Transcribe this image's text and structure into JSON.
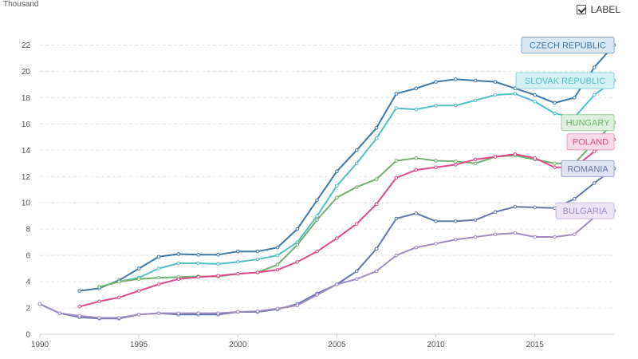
{
  "chart_data": {
    "type": "line",
    "title": "",
    "ylabel": "Thousand",
    "xlabel": "",
    "xlim": [
      1990,
      2019
    ],
    "ylim": [
      0,
      23
    ],
    "x_ticks": [
      1990,
      1995,
      2000,
      2005,
      2010,
      2015
    ],
    "y_ticks": [
      0,
      2,
      4,
      6,
      8,
      10,
      12,
      14,
      16,
      18,
      20,
      22
    ],
    "grid": true,
    "legend_placement": "right-inline",
    "series": [
      {
        "name": "CZECH REPUBLIC",
        "color": "#3c78a8",
        "label_bg": "#dbe8f3",
        "label_border": "#7fa8cc",
        "points": [
          [
            1992,
            3.3
          ],
          [
            1993,
            3.5
          ],
          [
            1994,
            4.1
          ],
          [
            1995,
            5.0
          ],
          [
            1996,
            5.9
          ],
          [
            1997,
            6.1
          ],
          [
            1998,
            6.05
          ],
          [
            1999,
            6.05
          ],
          [
            2000,
            6.3
          ],
          [
            2001,
            6.3
          ],
          [
            2002,
            6.6
          ],
          [
            2003,
            8.0
          ],
          [
            2004,
            10.2
          ],
          [
            2005,
            12.4
          ],
          [
            2006,
            14.0
          ],
          [
            2007,
            15.7
          ],
          [
            2008,
            18.3
          ],
          [
            2009,
            18.7
          ],
          [
            2010,
            19.2
          ],
          [
            2011,
            19.4
          ],
          [
            2012,
            19.3
          ],
          [
            2013,
            19.2
          ],
          [
            2014,
            18.7
          ],
          [
            2015,
            18.2
          ],
          [
            2016,
            17.6
          ],
          [
            2017,
            18.0
          ],
          [
            2018,
            20.3
          ],
          [
            2019,
            22.0
          ]
        ]
      },
      {
        "name": "SLOVAK REPUBLIC",
        "color": "#4fc0c8",
        "label_bg": "#d6f1f3",
        "label_border": "#86d3d8",
        "points": [
          [
            1993,
            3.6
          ],
          [
            1994,
            4.0
          ],
          [
            1995,
            4.3
          ],
          [
            1996,
            5.0
          ],
          [
            1997,
            5.4
          ],
          [
            1998,
            5.4
          ],
          [
            1999,
            5.35
          ],
          [
            2000,
            5.5
          ],
          [
            2001,
            5.7
          ],
          [
            2002,
            6.0
          ],
          [
            2003,
            7.0
          ],
          [
            2004,
            9.0
          ],
          [
            2005,
            11.3
          ],
          [
            2006,
            13.0
          ],
          [
            2007,
            14.9
          ],
          [
            2008,
            17.2
          ],
          [
            2009,
            17.1
          ],
          [
            2010,
            17.4
          ],
          [
            2011,
            17.4
          ],
          [
            2012,
            17.8
          ],
          [
            2013,
            18.2
          ],
          [
            2014,
            18.3
          ],
          [
            2015,
            17.7
          ],
          [
            2016,
            16.8
          ],
          [
            2017,
            16.5
          ],
          [
            2018,
            18.2
          ],
          [
            2019,
            19.3
          ]
        ]
      },
      {
        "name": "HUNGARY",
        "color": "#72b06e",
        "label_bg": "#e0f0de",
        "label_border": "#9fcf9b",
        "points": [
          [
            1993,
            3.6
          ],
          [
            1994,
            4.0
          ],
          [
            1995,
            4.2
          ],
          [
            1996,
            4.3
          ],
          [
            1997,
            4.35
          ],
          [
            1998,
            4.4
          ],
          [
            1999,
            4.4
          ],
          [
            2000,
            4.6
          ],
          [
            2001,
            4.7
          ],
          [
            2002,
            5.3
          ],
          [
            2003,
            6.8
          ],
          [
            2004,
            8.7
          ],
          [
            2005,
            10.4
          ],
          [
            2006,
            11.2
          ],
          [
            2007,
            11.8
          ],
          [
            2008,
            13.2
          ],
          [
            2009,
            13.4
          ],
          [
            2010,
            13.2
          ],
          [
            2011,
            13.15
          ],
          [
            2012,
            13.0
          ],
          [
            2013,
            13.5
          ],
          [
            2014,
            13.6
          ],
          [
            2015,
            13.3
          ],
          [
            2016,
            13.0
          ],
          [
            2017,
            13.0
          ],
          [
            2018,
            14.6
          ],
          [
            2019,
            16.1
          ]
        ]
      },
      {
        "name": "POLAND",
        "color": "#de4b8c",
        "label_bg": "#f9dbe8",
        "label_border": "#eba0c3",
        "points": [
          [
            1992,
            2.1
          ],
          [
            1993,
            2.5
          ],
          [
            1994,
            2.8
          ],
          [
            1995,
            3.3
          ],
          [
            1996,
            3.8
          ],
          [
            1997,
            4.2
          ],
          [
            1998,
            4.35
          ],
          [
            1999,
            4.45
          ],
          [
            2000,
            4.6
          ],
          [
            2001,
            4.7
          ],
          [
            2002,
            4.9
          ],
          [
            2003,
            5.5
          ],
          [
            2004,
            6.3
          ],
          [
            2005,
            7.3
          ],
          [
            2006,
            8.4
          ],
          [
            2007,
            9.9
          ],
          [
            2008,
            11.9
          ],
          [
            2009,
            12.5
          ],
          [
            2010,
            12.7
          ],
          [
            2011,
            12.9
          ],
          [
            2012,
            13.3
          ],
          [
            2013,
            13.5
          ],
          [
            2014,
            13.7
          ],
          [
            2015,
            13.4
          ],
          [
            2016,
            12.7
          ],
          [
            2017,
            12.7
          ],
          [
            2018,
            13.9
          ],
          [
            2019,
            14.8
          ]
        ]
      },
      {
        "name": "ROMANIA",
        "color": "#6475a8",
        "label_bg": "#e0e4f2",
        "label_border": "#9aa6cc",
        "points": [
          [
            1990,
            2.3
          ],
          [
            1991,
            1.6
          ],
          [
            1992,
            1.3
          ],
          [
            1993,
            1.2
          ],
          [
            1994,
            1.2
          ],
          [
            1995,
            1.5
          ],
          [
            1996,
            1.6
          ],
          [
            1997,
            1.5
          ],
          [
            1998,
            1.5
          ],
          [
            1999,
            1.5
          ],
          [
            2000,
            1.7
          ],
          [
            2001,
            1.7
          ],
          [
            2002,
            1.9
          ],
          [
            2003,
            2.3
          ],
          [
            2004,
            3.1
          ],
          [
            2005,
            3.8
          ],
          [
            2006,
            4.8
          ],
          [
            2007,
            6.5
          ],
          [
            2008,
            8.8
          ],
          [
            2009,
            9.2
          ],
          [
            2010,
            8.6
          ],
          [
            2011,
            8.6
          ],
          [
            2012,
            8.7
          ],
          [
            2013,
            9.3
          ],
          [
            2014,
            9.7
          ],
          [
            2015,
            9.65
          ],
          [
            2016,
            9.6
          ],
          [
            2017,
            10.3
          ],
          [
            2018,
            11.5
          ],
          [
            2019,
            12.6
          ]
        ]
      },
      {
        "name": "BULGARIA",
        "color": "#a08ac4",
        "label_bg": "#ece5f5",
        "label_border": "#c6b6df",
        "points": [
          [
            1990,
            2.3
          ],
          [
            1991,
            1.6
          ],
          [
            1992,
            1.4
          ],
          [
            1993,
            1.25
          ],
          [
            1994,
            1.25
          ],
          [
            1995,
            1.5
          ],
          [
            1996,
            1.6
          ],
          [
            1997,
            1.6
          ],
          [
            1998,
            1.6
          ],
          [
            1999,
            1.6
          ],
          [
            2000,
            1.7
          ],
          [
            2001,
            1.75
          ],
          [
            2002,
            1.95
          ],
          [
            2003,
            2.2
          ],
          [
            2004,
            3.0
          ],
          [
            2005,
            3.8
          ],
          [
            2006,
            4.2
          ],
          [
            2007,
            4.8
          ],
          [
            2008,
            6.0
          ],
          [
            2009,
            6.6
          ],
          [
            2010,
            6.9
          ],
          [
            2011,
            7.2
          ],
          [
            2012,
            7.4
          ],
          [
            2013,
            7.6
          ],
          [
            2014,
            7.7
          ],
          [
            2015,
            7.4
          ],
          [
            2016,
            7.4
          ],
          [
            2017,
            7.6
          ],
          [
            2018,
            8.9
          ],
          [
            2019,
            9.4
          ]
        ]
      }
    ]
  },
  "ui": {
    "label_toggle_text": "LABEL",
    "y_unit": "Thousand"
  }
}
